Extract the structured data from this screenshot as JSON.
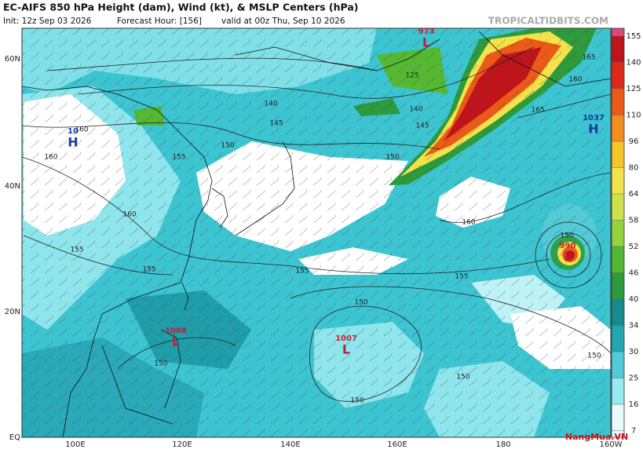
{
  "header": {
    "title": "EC-AIFS 850 hPa Height (dam), Wind (kt), & MSLP Centers (hPa)",
    "init": "Init: 12z Sep 03 2026",
    "forecast_hour": "Forecast Hour: [156]",
    "valid": "valid at 00z Thu, Sep 10 2026",
    "source": "TROPICALTIDBITS.COM"
  },
  "map": {
    "lat_labels": [
      "60N",
      "40N",
      "20N",
      "EQ"
    ],
    "lon_labels": [
      "100E",
      "120E",
      "140E",
      "160E",
      "180",
      "160W"
    ],
    "centers": [
      {
        "value": 973,
        "letter": "L"
      },
      {
        "value": 1037,
        "letter": "H"
      },
      {
        "value": 10,
        "letter": "H"
      },
      {
        "value": 990,
        "letter": "L"
      },
      {
        "value": 1008,
        "letter": "L"
      },
      {
        "value": 1007,
        "letter": "L"
      }
    ],
    "contour_labels": [
      150,
      155,
      160,
      160,
      155,
      155,
      150,
      150,
      150,
      155,
      155,
      160,
      165,
      160,
      145,
      140,
      145,
      140,
      150,
      150,
      150,
      150,
      125,
      165,
      160
    ]
  },
  "colorbar": {
    "ticks": [
      155,
      140,
      125,
      110,
      96,
      80,
      64,
      58,
      52,
      46,
      40,
      34,
      30,
      25,
      16,
      7
    ],
    "colors": [
      "#d9487a",
      "#c0141c",
      "#dd2a18",
      "#ec5a18",
      "#f38d1e",
      "#f7c42c",
      "#f3e24a",
      "#cde24a",
      "#94d23e",
      "#55b832",
      "#2d9a3c",
      "#168a8c",
      "#24a6b2",
      "#52cbd6",
      "#98eaf0",
      "#e8fbfc"
    ]
  },
  "watermark": "NangMua.VN"
}
